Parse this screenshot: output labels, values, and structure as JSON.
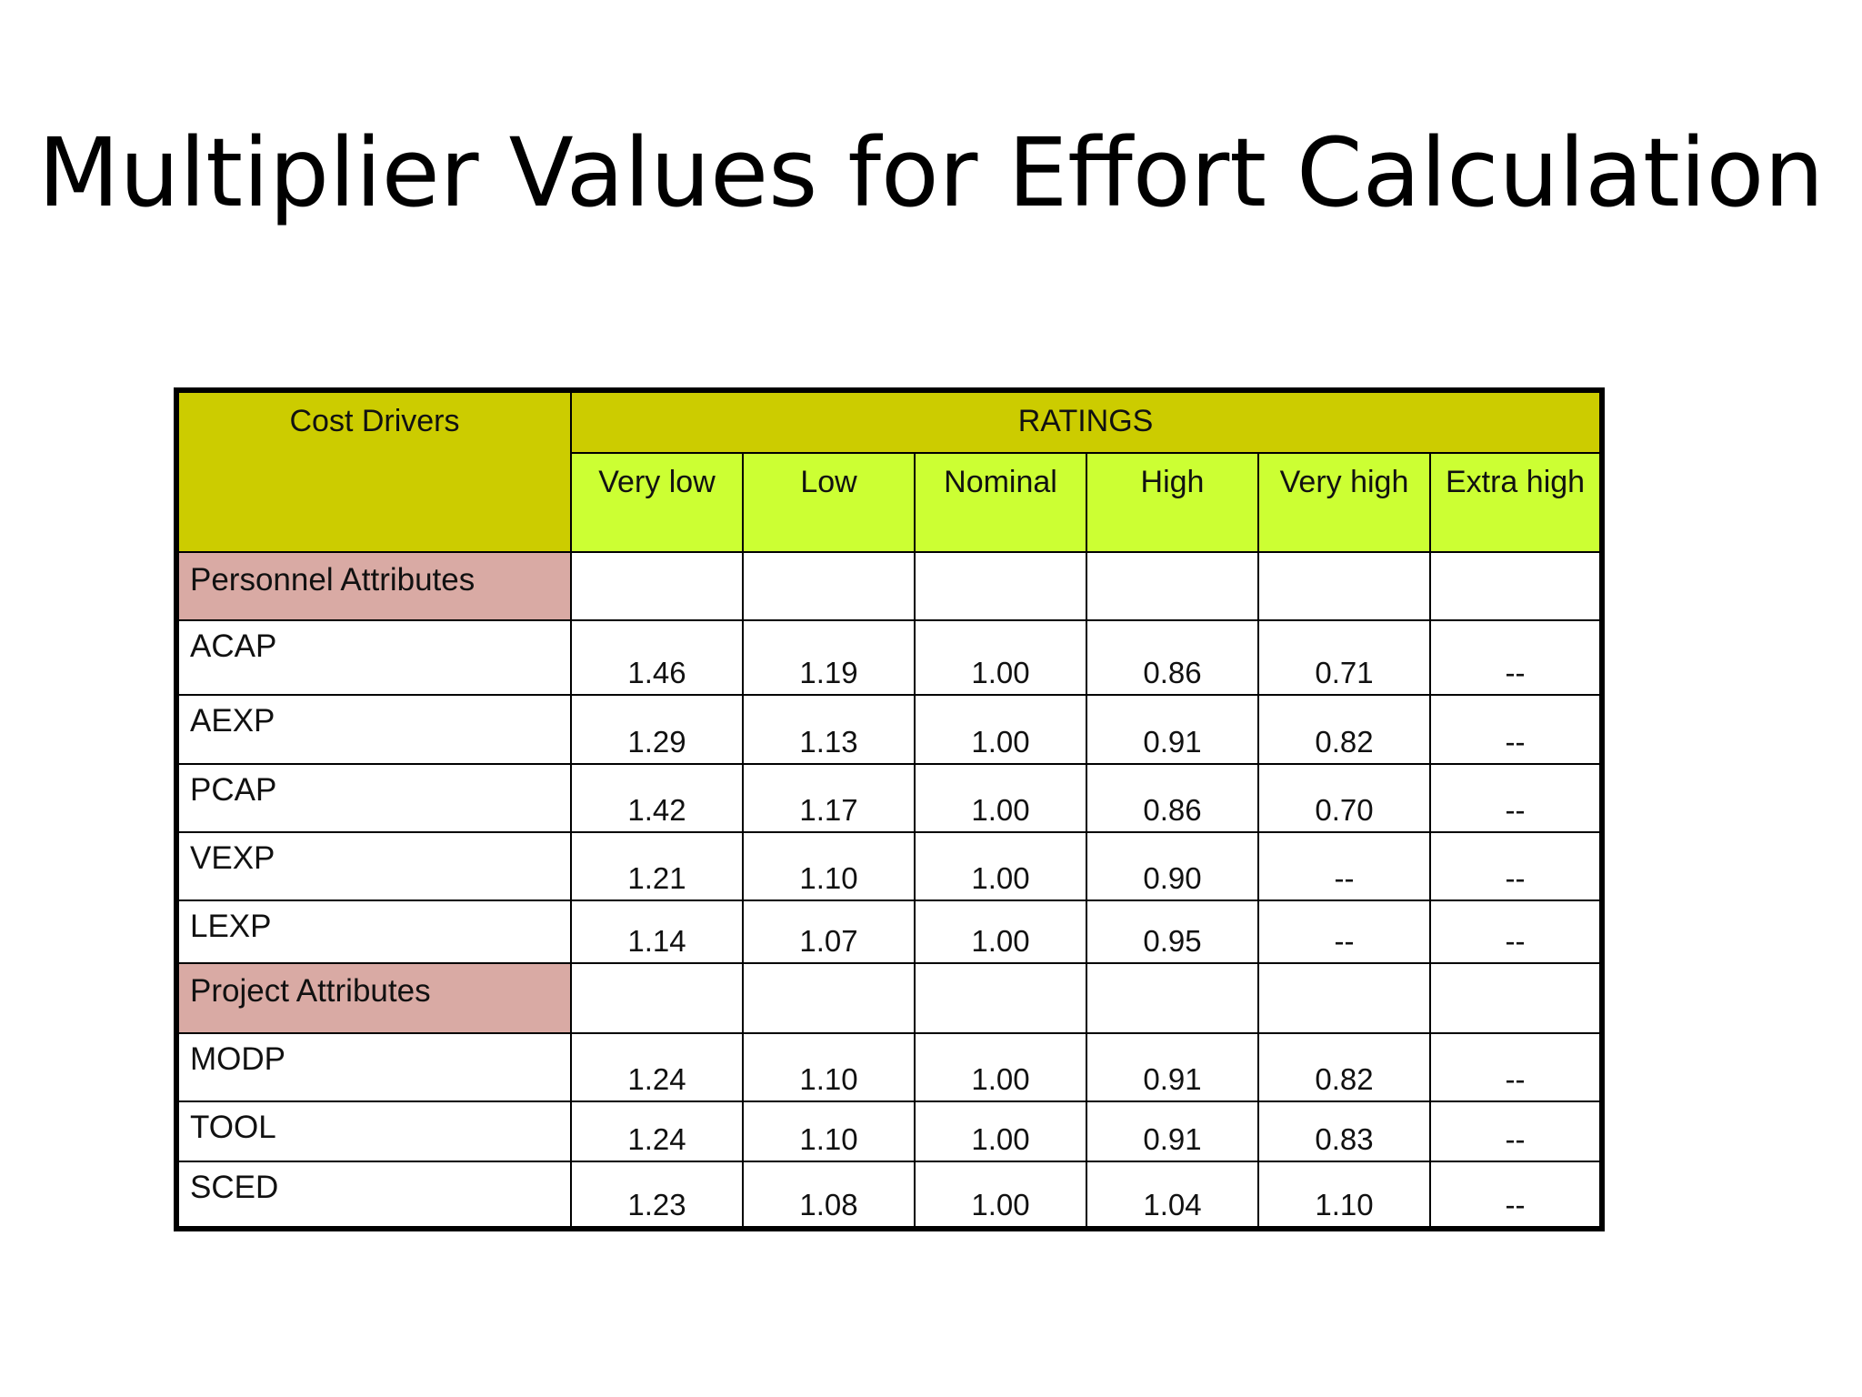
{
  "title": "Multiplier Values for Effort Calculation",
  "table": {
    "corner_label": "Cost Drivers",
    "ratings_label": "RATINGS",
    "columns": [
      "Very low",
      "Low",
      "Nominal",
      "High",
      "Very high",
      "Extra high"
    ],
    "groups": [
      {
        "label": "Personnel Attributes",
        "rows": [
          {
            "driver": "ACAP",
            "values": [
              "1.46",
              "1.19",
              "1.00",
              "0.86",
              "0.71",
              "--"
            ]
          },
          {
            "driver": "AEXP",
            "values": [
              "1.29",
              "1.13",
              "1.00",
              "0.91",
              "0.82",
              "--"
            ]
          },
          {
            "driver": "PCAP",
            "values": [
              "1.42",
              "1.17",
              "1.00",
              "0.86",
              "0.70",
              "--"
            ]
          },
          {
            "driver": "VEXP",
            "values": [
              "1.21",
              "1.10",
              "1.00",
              "0.90",
              "--",
              "--"
            ]
          },
          {
            "driver": "LEXP",
            "values": [
              "1.14",
              "1.07",
              "1.00",
              "0.95",
              "--",
              "--"
            ]
          }
        ]
      },
      {
        "label": "Project Attributes",
        "rows": [
          {
            "driver": "MODP",
            "values": [
              "1.24",
              "1.10",
              "1.00",
              "0.91",
              "0.82",
              "--"
            ]
          },
          {
            "driver": "TOOL",
            "values": [
              "1.24",
              "1.10",
              "1.00",
              "0.91",
              "0.83",
              "--"
            ]
          },
          {
            "driver": "SCED",
            "values": [
              "1.23",
              "1.08",
              "1.00",
              "1.04",
              "1.10",
              "--"
            ]
          }
        ]
      }
    ]
  },
  "colors": {
    "header_dark": "#cccc00",
    "header_light": "#ccff33",
    "group_row": "#d9aaa4"
  }
}
